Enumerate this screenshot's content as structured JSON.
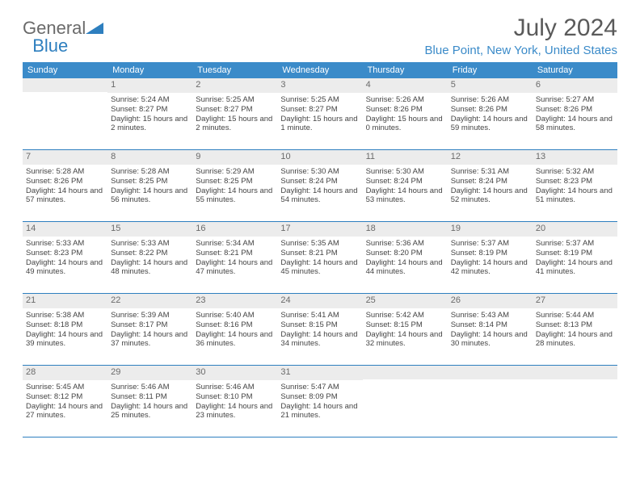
{
  "brand": {
    "word1": "General",
    "word2": "  Blue"
  },
  "title": "July 2024",
  "location": "Blue Point, New York, United States",
  "colors": {
    "accent": "#3b8bc9",
    "accent_dark": "#2e7fbf",
    "daynum_bg": "#ececec",
    "text": "#444444",
    "heading": "#5a5a5a",
    "background": "#ffffff"
  },
  "dayNames": [
    "Sunday",
    "Monday",
    "Tuesday",
    "Wednesday",
    "Thursday",
    "Friday",
    "Saturday"
  ],
  "weeks": [
    [
      null,
      {
        "n": 1,
        "sr": "5:24 AM",
        "ss": "8:27 PM",
        "dl": "15 hours and 2 minutes."
      },
      {
        "n": 2,
        "sr": "5:25 AM",
        "ss": "8:27 PM",
        "dl": "15 hours and 2 minutes."
      },
      {
        "n": 3,
        "sr": "5:25 AM",
        "ss": "8:27 PM",
        "dl": "15 hours and 1 minute."
      },
      {
        "n": 4,
        "sr": "5:26 AM",
        "ss": "8:26 PM",
        "dl": "15 hours and 0 minutes."
      },
      {
        "n": 5,
        "sr": "5:26 AM",
        "ss": "8:26 PM",
        "dl": "14 hours and 59 minutes."
      },
      {
        "n": 6,
        "sr": "5:27 AM",
        "ss": "8:26 PM",
        "dl": "14 hours and 58 minutes."
      }
    ],
    [
      {
        "n": 7,
        "sr": "5:28 AM",
        "ss": "8:26 PM",
        "dl": "14 hours and 57 minutes."
      },
      {
        "n": 8,
        "sr": "5:28 AM",
        "ss": "8:25 PM",
        "dl": "14 hours and 56 minutes."
      },
      {
        "n": 9,
        "sr": "5:29 AM",
        "ss": "8:25 PM",
        "dl": "14 hours and 55 minutes."
      },
      {
        "n": 10,
        "sr": "5:30 AM",
        "ss": "8:24 PM",
        "dl": "14 hours and 54 minutes."
      },
      {
        "n": 11,
        "sr": "5:30 AM",
        "ss": "8:24 PM",
        "dl": "14 hours and 53 minutes."
      },
      {
        "n": 12,
        "sr": "5:31 AM",
        "ss": "8:24 PM",
        "dl": "14 hours and 52 minutes."
      },
      {
        "n": 13,
        "sr": "5:32 AM",
        "ss": "8:23 PM",
        "dl": "14 hours and 51 minutes."
      }
    ],
    [
      {
        "n": 14,
        "sr": "5:33 AM",
        "ss": "8:23 PM",
        "dl": "14 hours and 49 minutes."
      },
      {
        "n": 15,
        "sr": "5:33 AM",
        "ss": "8:22 PM",
        "dl": "14 hours and 48 minutes."
      },
      {
        "n": 16,
        "sr": "5:34 AM",
        "ss": "8:21 PM",
        "dl": "14 hours and 47 minutes."
      },
      {
        "n": 17,
        "sr": "5:35 AM",
        "ss": "8:21 PM",
        "dl": "14 hours and 45 minutes."
      },
      {
        "n": 18,
        "sr": "5:36 AM",
        "ss": "8:20 PM",
        "dl": "14 hours and 44 minutes."
      },
      {
        "n": 19,
        "sr": "5:37 AM",
        "ss": "8:19 PM",
        "dl": "14 hours and 42 minutes."
      },
      {
        "n": 20,
        "sr": "5:37 AM",
        "ss": "8:19 PM",
        "dl": "14 hours and 41 minutes."
      }
    ],
    [
      {
        "n": 21,
        "sr": "5:38 AM",
        "ss": "8:18 PM",
        "dl": "14 hours and 39 minutes."
      },
      {
        "n": 22,
        "sr": "5:39 AM",
        "ss": "8:17 PM",
        "dl": "14 hours and 37 minutes."
      },
      {
        "n": 23,
        "sr": "5:40 AM",
        "ss": "8:16 PM",
        "dl": "14 hours and 36 minutes."
      },
      {
        "n": 24,
        "sr": "5:41 AM",
        "ss": "8:15 PM",
        "dl": "14 hours and 34 minutes."
      },
      {
        "n": 25,
        "sr": "5:42 AM",
        "ss": "8:15 PM",
        "dl": "14 hours and 32 minutes."
      },
      {
        "n": 26,
        "sr": "5:43 AM",
        "ss": "8:14 PM",
        "dl": "14 hours and 30 minutes."
      },
      {
        "n": 27,
        "sr": "5:44 AM",
        "ss": "8:13 PM",
        "dl": "14 hours and 28 minutes."
      }
    ],
    [
      {
        "n": 28,
        "sr": "5:45 AM",
        "ss": "8:12 PM",
        "dl": "14 hours and 27 minutes."
      },
      {
        "n": 29,
        "sr": "5:46 AM",
        "ss": "8:11 PM",
        "dl": "14 hours and 25 minutes."
      },
      {
        "n": 30,
        "sr": "5:46 AM",
        "ss": "8:10 PM",
        "dl": "14 hours and 23 minutes."
      },
      {
        "n": 31,
        "sr": "5:47 AM",
        "ss": "8:09 PM",
        "dl": "14 hours and 21 minutes."
      },
      null,
      null,
      null
    ]
  ],
  "labels": {
    "sunrise": "Sunrise:",
    "sunset": "Sunset:",
    "daylight": "Daylight:"
  }
}
